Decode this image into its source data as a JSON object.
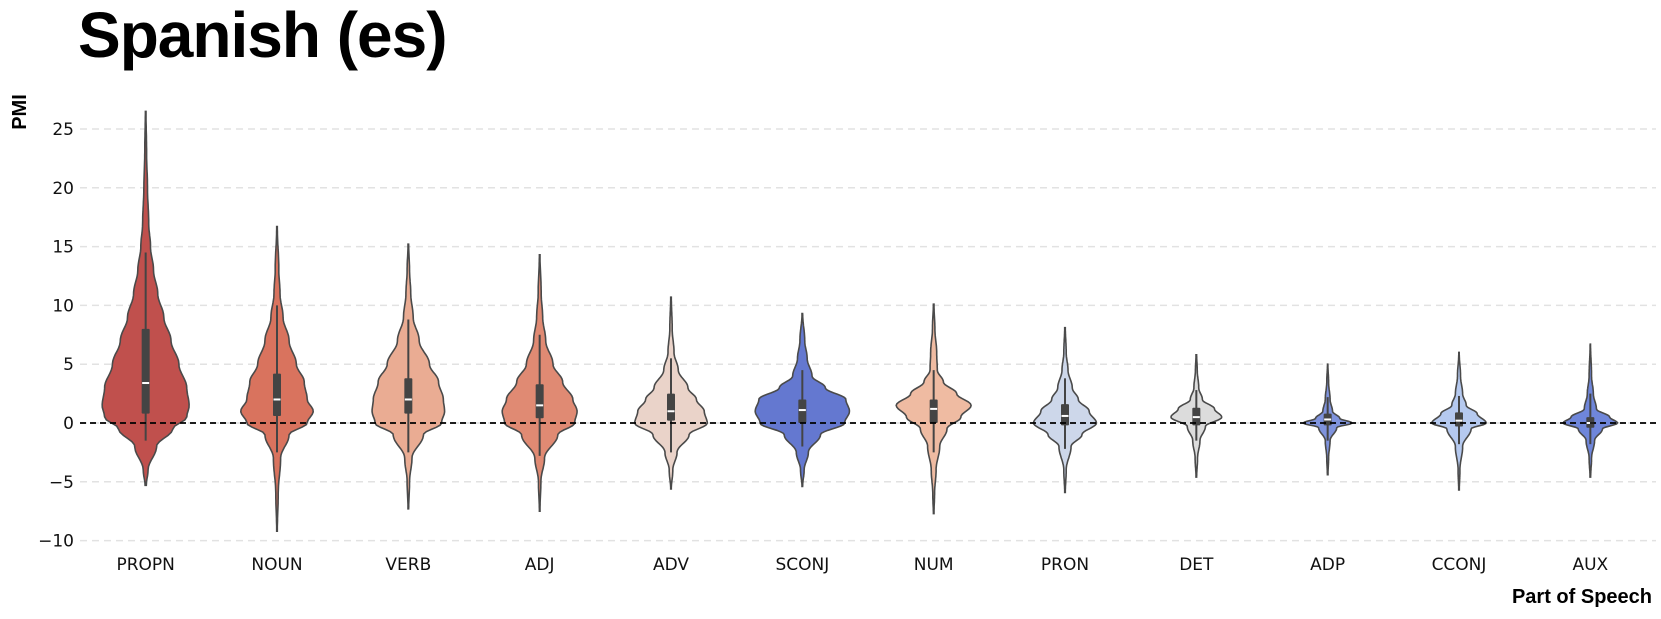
{
  "chart_data": {
    "type": "violin",
    "title": "Spanish (es)",
    "xlabel": "Part of Speech",
    "ylabel": "PMI",
    "ylim": [
      -10.5,
      27
    ],
    "yticks": [
      -10,
      -5,
      0,
      5,
      10,
      15,
      20,
      25
    ],
    "ytick_labels": [
      "−10",
      "−5",
      "0",
      "5",
      "10",
      "15",
      "20",
      "25"
    ],
    "grid": true,
    "reference_line_y": 0,
    "categories": [
      "PROPN",
      "NOUN",
      "VERB",
      "ADJ",
      "ADV",
      "SCONJ",
      "NUM",
      "PRON",
      "DET",
      "ADP",
      "CCONJ",
      "AUX"
    ],
    "colors": [
      "#c0504d",
      "#d9735e",
      "#eaac93",
      "#e08a73",
      "#ead3c9",
      "#6478d0",
      "#efbba2",
      "#cdd7ea",
      "#dcdcdc",
      "#7f93dd",
      "#b5c9ef",
      "#6f86da"
    ],
    "violins": [
      {
        "category": "PROPN",
        "min": -5.3,
        "max": 26.5,
        "q1": 0.8,
        "median": 3.4,
        "q3": 8.0,
        "whisker_low": -1.5,
        "whisker_high": 14.5,
        "profile": [
          [
            -5.3,
            0.01
          ],
          [
            -4,
            0.04
          ],
          [
            -2,
            0.18
          ],
          [
            -0.5,
            0.45
          ],
          [
            0.5,
            0.68
          ],
          [
            1.5,
            0.72
          ],
          [
            3,
            0.68
          ],
          [
            5,
            0.55
          ],
          [
            7,
            0.42
          ],
          [
            9,
            0.3
          ],
          [
            11,
            0.2
          ],
          [
            13,
            0.13
          ],
          [
            15,
            0.08
          ],
          [
            17,
            0.05
          ],
          [
            20,
            0.03
          ],
          [
            23,
            0.015
          ],
          [
            26.5,
            0.005
          ]
        ]
      },
      {
        "category": "NOUN",
        "min": -9.2,
        "max": 16.7,
        "q1": 0.6,
        "median": 2.0,
        "q3": 4.2,
        "whisker_low": -2.5,
        "whisker_high": 10,
        "profile": [
          [
            -9.2,
            0.005
          ],
          [
            -6,
            0.02
          ],
          [
            -3,
            0.06
          ],
          [
            -1,
            0.2
          ],
          [
            0,
            0.5
          ],
          [
            1,
            0.6
          ],
          [
            2,
            0.5
          ],
          [
            3.5,
            0.45
          ],
          [
            5,
            0.32
          ],
          [
            7,
            0.2
          ],
          [
            9,
            0.1
          ],
          [
            11,
            0.05
          ],
          [
            13,
            0.03
          ],
          [
            16.7,
            0.005
          ]
        ]
      },
      {
        "category": "VERB",
        "min": -7.3,
        "max": 15.2,
        "q1": 0.8,
        "median": 2.0,
        "q3": 3.8,
        "whisker_low": -2.5,
        "whisker_high": 8.8,
        "profile": [
          [
            -7.3,
            0.005
          ],
          [
            -5,
            0.02
          ],
          [
            -3,
            0.06
          ],
          [
            -1,
            0.25
          ],
          [
            0,
            0.55
          ],
          [
            1,
            0.6
          ],
          [
            2,
            0.58
          ],
          [
            3.5,
            0.5
          ],
          [
            5,
            0.35
          ],
          [
            7,
            0.18
          ],
          [
            9,
            0.08
          ],
          [
            11,
            0.04
          ],
          [
            13,
            0.02
          ],
          [
            15.2,
            0.005
          ]
        ]
      },
      {
        "category": "ADJ",
        "min": -7.5,
        "max": 14.3,
        "q1": 0.4,
        "median": 1.5,
        "q3": 3.3,
        "whisker_low": -2.8,
        "whisker_high": 7.5,
        "profile": [
          [
            -7.5,
            0.005
          ],
          [
            -5,
            0.02
          ],
          [
            -3,
            0.08
          ],
          [
            -1,
            0.3
          ],
          [
            0,
            0.58
          ],
          [
            1,
            0.62
          ],
          [
            2,
            0.55
          ],
          [
            3.5,
            0.38
          ],
          [
            5,
            0.22
          ],
          [
            7,
            0.1
          ],
          [
            9,
            0.05
          ],
          [
            11,
            0.025
          ],
          [
            14.3,
            0.005
          ]
        ]
      },
      {
        "category": "ADV",
        "min": -5.6,
        "max": 10.7,
        "q1": 0.2,
        "median": 1.0,
        "q3": 2.5,
        "whisker_low": -2.5,
        "whisker_high": 5.5,
        "profile": [
          [
            -5.6,
            0.005
          ],
          [
            -4,
            0.03
          ],
          [
            -2.5,
            0.1
          ],
          [
            -1,
            0.3
          ],
          [
            0,
            0.6
          ],
          [
            1,
            0.55
          ],
          [
            2,
            0.42
          ],
          [
            3,
            0.28
          ],
          [
            4.5,
            0.12
          ],
          [
            6,
            0.05
          ],
          [
            8,
            0.02
          ],
          [
            10.7,
            0.005
          ]
        ]
      },
      {
        "category": "SCONJ",
        "min": -5.4,
        "max": 9.3,
        "q1": 0.0,
        "median": 1.1,
        "q3": 2.0,
        "whisker_low": -2.0,
        "whisker_high": 4.5,
        "profile": [
          [
            -5.4,
            0.005
          ],
          [
            -4,
            0.03
          ],
          [
            -2.5,
            0.1
          ],
          [
            -1,
            0.3
          ],
          [
            0,
            0.7
          ],
          [
            1,
            0.78
          ],
          [
            2,
            0.72
          ],
          [
            3,
            0.38
          ],
          [
            4,
            0.16
          ],
          [
            5.5,
            0.08
          ],
          [
            7,
            0.04
          ],
          [
            9.3,
            0.005
          ]
        ]
      },
      {
        "category": "NUM",
        "min": -7.7,
        "max": 10.1,
        "q1": 0.0,
        "median": 1.2,
        "q3": 2.0,
        "whisker_low": -2.5,
        "whisker_high": 4.5,
        "profile": [
          [
            -7.7,
            0.005
          ],
          [
            -6,
            0.015
          ],
          [
            -4,
            0.04
          ],
          [
            -2,
            0.1
          ],
          [
            -0.5,
            0.22
          ],
          [
            0.5,
            0.45
          ],
          [
            1.5,
            0.62
          ],
          [
            2.5,
            0.38
          ],
          [
            3.5,
            0.16
          ],
          [
            4.5,
            0.06
          ],
          [
            6,
            0.05
          ],
          [
            8,
            0.02
          ],
          [
            10.1,
            0.005
          ]
        ]
      },
      {
        "category": "PRON",
        "min": -5.9,
        "max": 8.1,
        "q1": -0.2,
        "median": 0.6,
        "q3": 1.6,
        "whisker_low": -2.2,
        "whisker_high": 3.8,
        "profile": [
          [
            -5.9,
            0.005
          ],
          [
            -4,
            0.02
          ],
          [
            -2,
            0.1
          ],
          [
            -1,
            0.28
          ],
          [
            0,
            0.52
          ],
          [
            1,
            0.4
          ],
          [
            2,
            0.22
          ],
          [
            3,
            0.12
          ],
          [
            4.5,
            0.05
          ],
          [
            6,
            0.02
          ],
          [
            8.1,
            0.005
          ]
        ]
      },
      {
        "category": "DET",
        "min": -4.6,
        "max": 5.8,
        "q1": -0.2,
        "median": 0.5,
        "q3": 1.3,
        "whisker_low": -1.5,
        "whisker_high": 2.8,
        "profile": [
          [
            -4.6,
            0.005
          ],
          [
            -3,
            0.02
          ],
          [
            -1.5,
            0.06
          ],
          [
            -0.3,
            0.15
          ],
          [
            0.5,
            0.42
          ],
          [
            1.2,
            0.3
          ],
          [
            2,
            0.1
          ],
          [
            3,
            0.04
          ],
          [
            4.5,
            0.015
          ],
          [
            5.8,
            0.005
          ]
        ]
      },
      {
        "category": "ADP",
        "min": -4.4,
        "max": 5.0,
        "q1": -0.2,
        "median": 0.3,
        "q3": 0.8,
        "whisker_low": -1.5,
        "whisker_high": 2.2,
        "profile": [
          [
            -4.4,
            0.005
          ],
          [
            -3,
            0.015
          ],
          [
            -1.5,
            0.04
          ],
          [
            -0.4,
            0.15
          ],
          [
            0,
            0.4
          ],
          [
            0.4,
            0.2
          ],
          [
            1,
            0.08
          ],
          [
            2,
            0.04
          ],
          [
            3.5,
            0.015
          ],
          [
            5,
            0.003
          ]
        ]
      },
      {
        "category": "CCONJ",
        "min": -5.7,
        "max": 6.0,
        "q1": -0.3,
        "median": 0.2,
        "q3": 0.9,
        "whisker_low": -1.8,
        "whisker_high": 2.3,
        "profile": [
          [
            -5.7,
            0.005
          ],
          [
            -4,
            0.015
          ],
          [
            -2,
            0.06
          ],
          [
            -0.5,
            0.2
          ],
          [
            0,
            0.45
          ],
          [
            0.8,
            0.3
          ],
          [
            1.5,
            0.12
          ],
          [
            2.5,
            0.06
          ],
          [
            4,
            0.025
          ],
          [
            6,
            0.003
          ]
        ]
      },
      {
        "category": "AUX",
        "min": -4.6,
        "max": 6.7,
        "q1": -0.4,
        "median": 0.0,
        "q3": 0.5,
        "whisker_low": -1.8,
        "whisker_high": 2.5,
        "profile": [
          [
            -4.6,
            0.005
          ],
          [
            -3,
            0.02
          ],
          [
            -1.5,
            0.07
          ],
          [
            -0.5,
            0.2
          ],
          [
            0,
            0.45
          ],
          [
            0.5,
            0.32
          ],
          [
            1.2,
            0.1
          ],
          [
            2.5,
            0.05
          ],
          [
            4,
            0.02
          ],
          [
            6.7,
            0.003
          ]
        ]
      }
    ]
  }
}
